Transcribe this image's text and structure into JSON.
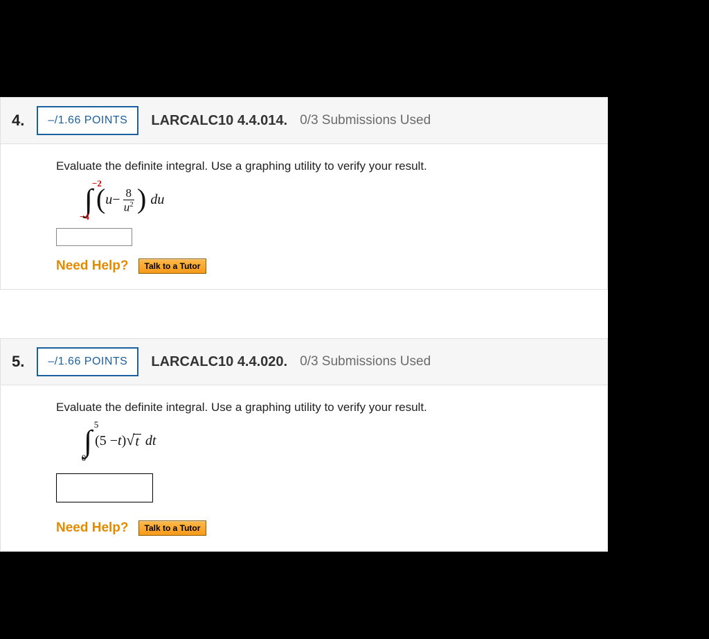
{
  "questions": [
    {
      "number": "4.",
      "points": "–/1.66 POINTS",
      "qid": "LARCALC10 4.4.014.",
      "subs": "0/3 Submissions Used",
      "prompt": "Evaluate the definite integral. Use a graphing utility to verify your result.",
      "integral": {
        "upper": "−2",
        "lower": "−4",
        "lparen": "(",
        "rparen": ")",
        "term1": "u",
        "minus": " − ",
        "frac_num": "8",
        "frac_den_base": "u",
        "frac_den_exp": "2",
        "diff": " du"
      },
      "answer_size": "small",
      "need_help": "Need Help?",
      "tutor": "Talk to a Tutor"
    },
    {
      "number": "5.",
      "points": "–/1.66 POINTS",
      "qid": "LARCALC10 4.4.020.",
      "subs": "0/3 Submissions Used",
      "prompt": "Evaluate the definite integral. Use a graphing utility to verify your result.",
      "integral2": {
        "upper": "5",
        "lower": "0",
        "expr_pre": "(5 − ",
        "expr_var": "t",
        "expr_post": ")",
        "radicand": "t",
        "diff": " dt"
      },
      "answer_size": "big",
      "need_help": "Need Help?",
      "tutor": "Talk to a Tutor"
    }
  ]
}
